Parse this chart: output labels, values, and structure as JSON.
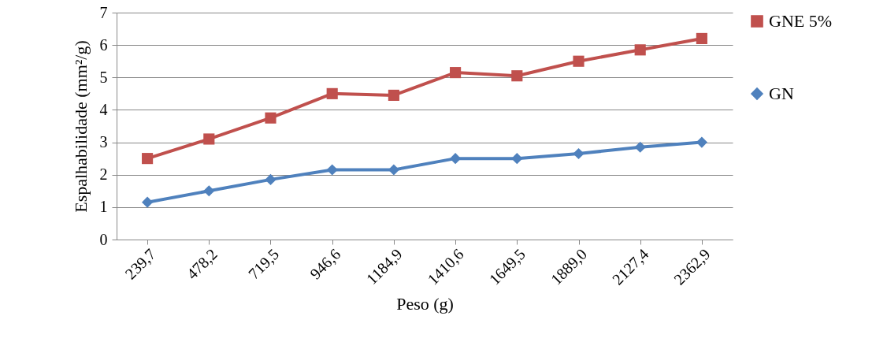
{
  "chart_data": {
    "type": "line",
    "xlabel": "Peso (g)",
    "ylabel": "Espalhabilidade (mm²/g)",
    "categories": [
      "239,7",
      "478,2",
      "719,5",
      "946,6",
      "1184,9",
      "1410,6",
      "1649,5",
      "1889,0",
      "2127,4",
      "2362,9"
    ],
    "series": [
      {
        "name": "GNE 5%",
        "color": "#c0504d",
        "marker": "square",
        "values": [
          2.5,
          3.1,
          3.75,
          4.5,
          4.45,
          5.15,
          5.05,
          5.5,
          5.85,
          6.2
        ]
      },
      {
        "name": "GN",
        "color": "#4f81bd",
        "marker": "diamond",
        "values": [
          1.15,
          1.5,
          1.85,
          2.15,
          2.15,
          2.5,
          2.5,
          2.65,
          2.85,
          3.0
        ]
      }
    ],
    "ylim": [
      0,
      7
    ],
    "yticks": [
      0,
      1,
      2,
      3,
      4,
      5,
      6,
      7
    ],
    "grid": "y",
    "legend": "right"
  }
}
